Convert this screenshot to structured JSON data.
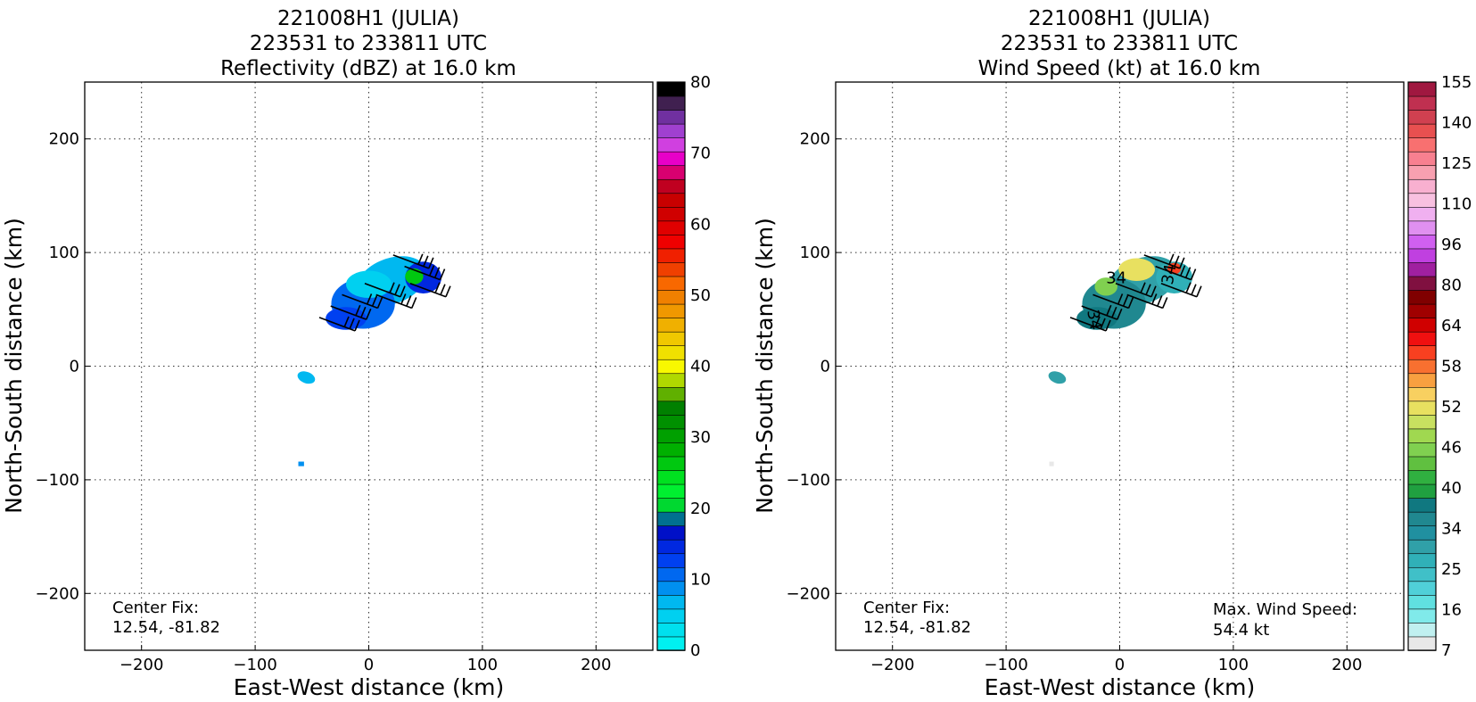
{
  "chart_data": [
    {
      "type": "heatmap",
      "title_lines": [
        "221008H1 (JULIA)",
        "223531 to 233811 UTC",
        "Reflectivity (dBZ) at 16.0 km"
      ],
      "xlabel": "East-West distance (km)",
      "ylabel": "North-South distance (km)",
      "xlim": [
        -250,
        250
      ],
      "ylim": [
        -250,
        250
      ],
      "xticks": [
        -200,
        -100,
        0,
        100,
        200
      ],
      "yticks": [
        -200,
        -100,
        0,
        100,
        200
      ],
      "grid": true,
      "colorbar": {
        "label_values": [
          0,
          10,
          20,
          30,
          40,
          50,
          60,
          70,
          80
        ],
        "levels": 40,
        "colors": [
          "#00f0f0",
          "#00e0ee",
          "#00d0f0",
          "#00b8f0",
          "#0090f0",
          "#0068f0",
          "#0040f0",
          "#0028e0",
          "#0010c8",
          "#007090",
          "#00d830",
          "#00f030",
          "#00e020",
          "#00c810",
          "#00b000",
          "#00a000",
          "#009000",
          "#008000",
          "#60b000",
          "#b0d800",
          "#f8f800",
          "#f0e000",
          "#f0c800",
          "#f0b000",
          "#f09800",
          "#f08000",
          "#f86800",
          "#f04000",
          "#f02000",
          "#f00000",
          "#e00000",
          "#d00000",
          "#c80000",
          "#c00020",
          "#d80070",
          "#e800c8",
          "#d040e0",
          "#a040d0",
          "#7030a0",
          "#402050",
          "#000000"
        ]
      },
      "annotation": {
        "label": "Center Fix:",
        "value": "12.54, -81.82"
      }
    },
    {
      "type": "heatmap",
      "title_lines": [
        "221008H1 (JULIA)",
        "223531 to 233811 UTC",
        "Wind Speed (kt) at 16.0 km"
      ],
      "xlabel": "East-West distance (km)",
      "ylabel": "North-South distance (km)",
      "xlim": [
        -250,
        250
      ],
      "ylim": [
        -250,
        250
      ],
      "xticks": [
        -200,
        -100,
        0,
        100,
        200
      ],
      "yticks": [
        -200,
        -100,
        0,
        100,
        200
      ],
      "grid": true,
      "contour_labels": [
        "34",
        "34",
        "34"
      ],
      "colorbar": {
        "label_values": [
          "7",
          "16",
          "25",
          "34",
          "40",
          "46",
          "52",
          "58",
          "64",
          "80",
          "96",
          "110",
          "125",
          "140",
          "155"
        ],
        "levels": 40,
        "colors": [
          "#e8e8e8",
          "#c0f0f0",
          "#80eaea",
          "#60e0e0",
          "#50d0d8",
          "#40c0c8",
          "#30b0b8",
          "#30a0a8",
          "#2090a0",
          "#208890",
          "#107880",
          "#20a040",
          "#30b040",
          "#60c040",
          "#80d050",
          "#a0d850",
          "#c8e060",
          "#e8e060",
          "#f8d060",
          "#f8a040",
          "#f87030",
          "#f84020",
          "#f01010",
          "#d00000",
          "#a00000",
          "#800000",
          "#801040",
          "#a020a0",
          "#c040e0",
          "#d060f0",
          "#e090f0",
          "#f0b0f0",
          "#f8c0e0",
          "#f8b0d0",
          "#f8a0b0",
          "#f88090",
          "#f87070",
          "#e85050",
          "#d04050",
          "#c03050",
          "#a01840"
        ]
      },
      "annotation": {
        "label": "Center Fix:",
        "value": "12.54, -81.82"
      },
      "annotation2": {
        "label": "Max. Wind Speed:",
        "value": "54.4 kt"
      }
    }
  ]
}
